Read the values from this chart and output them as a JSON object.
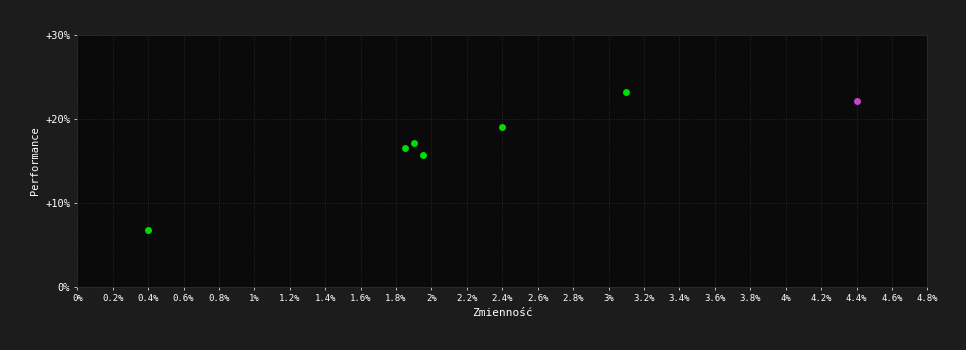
{
  "background_color": "#1c1c1c",
  "plot_bg_color": "#0a0a0a",
  "grid_color": "#2e2e2e",
  "text_color": "#ffffff",
  "xlabel": "Zmienność",
  "ylabel": "Performance",
  "xlim": [
    0.0,
    0.048
  ],
  "ylim": [
    0.0,
    0.3
  ],
  "xtick_step": 0.002,
  "ytick_values": [
    0.0,
    0.1,
    0.2,
    0.3
  ],
  "ytick_labels": [
    "0%",
    "+10%",
    "+20%",
    "+30%"
  ],
  "green_points": [
    [
      0.004,
      0.068
    ],
    [
      0.0185,
      0.166
    ],
    [
      0.019,
      0.172
    ],
    [
      0.0195,
      0.157
    ],
    [
      0.024,
      0.191
    ],
    [
      0.031,
      0.232
    ]
  ],
  "magenta_points": [
    [
      0.044,
      0.222
    ]
  ],
  "green_color": "#00dd00",
  "magenta_color": "#cc44cc",
  "dot_size": 25,
  "font_family": "monospace"
}
